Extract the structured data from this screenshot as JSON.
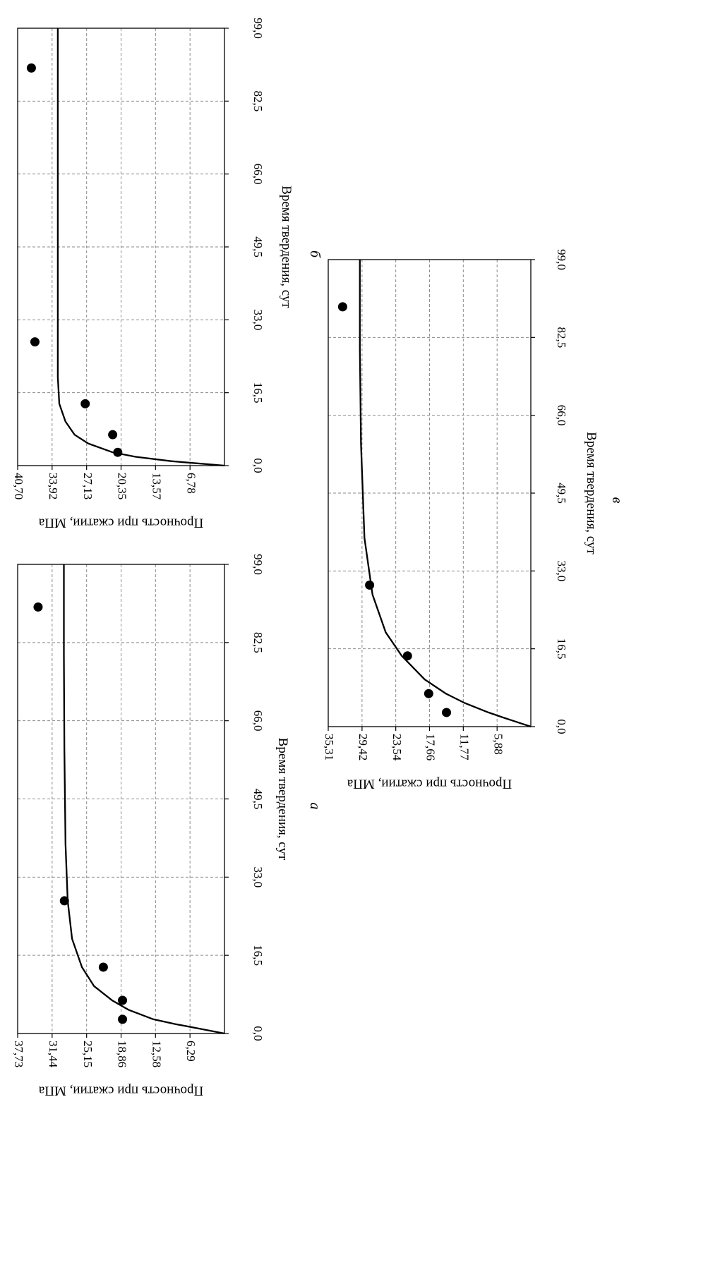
{
  "chart_data": [
    {
      "panel": "а",
      "type": "scatter",
      "xlabel": "Время твердения, сут",
      "ylabel": "Прочность при сжатии, МПа",
      "x_ticks": [
        "0,0",
        "16,5",
        "33,0",
        "49,5",
        "66,0",
        "82,5",
        "99,0"
      ],
      "y_ticks": [
        "6,29",
        "12,58",
        "18,86",
        "25,15",
        "31,44",
        "37,73"
      ],
      "xlim": [
        0,
        99
      ],
      "ylim": [
        0,
        37.73
      ],
      "grid": true,
      "points": [
        {
          "x": 3,
          "y": 18.6
        },
        {
          "x": 7,
          "y": 18.6
        },
        {
          "x": 14,
          "y": 22.1
        },
        {
          "x": 28,
          "y": 29.2
        },
        {
          "x": 90,
          "y": 34.0
        }
      ],
      "fit": {
        "type": "line",
        "x": [
          0,
          1,
          2,
          3,
          5,
          7,
          10,
          14,
          20,
          28,
          40,
          60,
          80,
          99
        ],
        "y": [
          0,
          4.5,
          9.0,
          13.0,
          17.5,
          20.5,
          23.8,
          26.0,
          27.8,
          28.6,
          29.0,
          29.2,
          29.3,
          29.3
        ]
      }
    },
    {
      "panel": "б",
      "type": "scatter",
      "xlabel": "Время твердения, сут",
      "ylabel": "Прочность при сжатии, МПа",
      "x_ticks": [
        "0,0",
        "16,5",
        "33,0",
        "49,5",
        "66,0",
        "82,5",
        "99,0"
      ],
      "y_ticks": [
        "6,78",
        "13,57",
        "20,35",
        "27,13",
        "33,92",
        "40,70"
      ],
      "xlim": [
        0,
        99
      ],
      "ylim": [
        0,
        40.7
      ],
      "grid": true,
      "points": [
        {
          "x": 3,
          "y": 21.0
        },
        {
          "x": 7,
          "y": 22.0
        },
        {
          "x": 14,
          "y": 27.4
        },
        {
          "x": 28,
          "y": 37.3
        },
        {
          "x": 90,
          "y": 38.0
        }
      ],
      "fit": {
        "type": "line",
        "x": [
          0,
          1,
          2,
          3,
          5,
          7,
          10,
          14,
          20,
          28,
          40,
          60,
          80,
          99
        ],
        "y": [
          0,
          10.5,
          17.5,
          22.0,
          26.8,
          29.5,
          31.3,
          32.5,
          32.8,
          32.8,
          32.8,
          32.8,
          32.8,
          32.8
        ]
      }
    },
    {
      "panel": "в",
      "type": "scatter",
      "xlabel": "Время твердения, сут",
      "ylabel": "Прочность при сжатии, МПа",
      "x_ticks": [
        "0,0",
        "16,5",
        "33,0",
        "49,5",
        "66,0",
        "82,5",
        "99,0"
      ],
      "y_ticks": [
        "5,88",
        "11,77",
        "17,66",
        "23,54",
        "29,42",
        "35,31"
      ],
      "xlim": [
        0,
        99
      ],
      "ylim": [
        0,
        35.31
      ],
      "grid": true,
      "points": [
        {
          "x": 3,
          "y": 14.7
        },
        {
          "x": 7,
          "y": 17.8
        },
        {
          "x": 15,
          "y": 21.5
        },
        {
          "x": 30,
          "y": 28.1
        },
        {
          "x": 89,
          "y": 32.8
        }
      ],
      "fit": {
        "type": "line",
        "x": [
          0,
          1,
          2,
          3,
          5,
          7,
          10,
          15,
          20,
          28,
          40,
          60,
          80,
          99
        ],
        "y": [
          0,
          2.5,
          5.0,
          7.4,
          11.5,
          14.8,
          18.5,
          22.5,
          25.3,
          27.6,
          29.0,
          29.6,
          29.8,
          29.8
        ]
      }
    }
  ]
}
